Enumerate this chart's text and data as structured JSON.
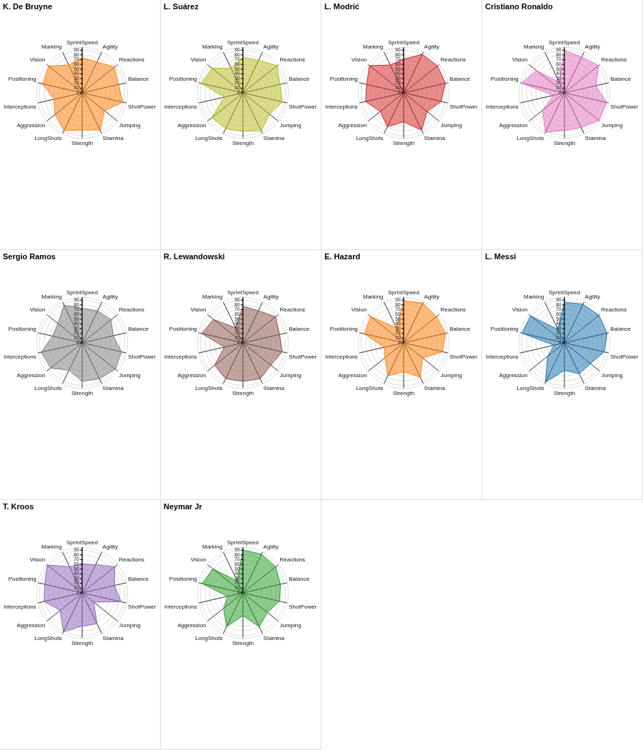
{
  "chart_data": [
    {
      "type": "radar",
      "title": "K. De Bruyne",
      "categories": [
        "SprintSpeed",
        "Agility",
        "Reactions",
        "Balance",
        "ShotPower",
        "Jumping",
        "Stamina",
        "Strength",
        "LongShots",
        "Aggression",
        "Interceptions",
        "Positioning",
        "Vision",
        "Marking"
      ],
      "series": [
        {
          "color": "#ff7f0e",
          "values": [
            74,
            72,
            87,
            78,
            88,
            60,
            87,
            78,
            88,
            73,
            61,
            85,
            90,
            65
          ]
        }
      ],
      "ylim": [
        0,
        96
      ],
      "yticks": [
        0,
        10,
        20,
        30,
        40,
        50,
        60,
        70,
        80,
        90
      ],
      "grid": true,
      "marker": "none"
    },
    {
      "type": "radar",
      "title": "L. Suárez",
      "categories": [
        "SprintSpeed",
        "Agility",
        "Reactions",
        "Balance",
        "ShotPower",
        "Jumping",
        "Stamina",
        "Strength",
        "LongShots",
        "Aggression",
        "Interceptions",
        "Positioning",
        "Vision",
        "Marking"
      ],
      "series": [
        {
          "color": "#bcbd22",
          "values": [
            75,
            76,
            92,
            80,
            85,
            72,
            89,
            81,
            84,
            84,
            40,
            90,
            83,
            57
          ]
        }
      ],
      "ylim": [
        0,
        96
      ],
      "yticks": [
        0,
        10,
        20,
        30,
        40,
        50,
        60,
        70,
        80,
        90
      ],
      "grid": true,
      "marker": "none"
    },
    {
      "type": "radar",
      "title": "L. Modrić",
      "categories": [
        "SprintSpeed",
        "Agility",
        "Reactions",
        "Balance",
        "ShotPower",
        "Jumping",
        "Stamina",
        "Strength",
        "LongShots",
        "Aggression",
        "Interceptions",
        "Positioning",
        "Vision",
        "Marking"
      ],
      "series": [
        {
          "color": "#d62728",
          "values": [
            71,
            90,
            91,
            90,
            81,
            63,
            87,
            61,
            79,
            63,
            82,
            80,
            92,
            65
          ]
        }
      ],
      "ylim": [
        0,
        96
      ],
      "yticks": [
        0,
        10,
        20,
        30,
        40,
        50,
        60,
        70,
        80,
        90
      ],
      "grid": true,
      "marker": "none"
    },
    {
      "type": "radar",
      "title": "Cristiano Ronaldo",
      "categories": [
        "SprintSpeed",
        "Agility",
        "Reactions",
        "Balance",
        "ShotPower",
        "Jumping",
        "Stamina",
        "Strength",
        "LongShots",
        "Aggression",
        "Interceptions",
        "Positioning",
        "Vision",
        "Marking"
      ],
      "series": [
        {
          "color": "#e377c2",
          "values": [
            89,
            84,
            92,
            68,
            91,
            93,
            81,
            79,
            92,
            59,
            23,
            93,
            75,
            25
          ]
        }
      ],
      "ylim": [
        0,
        96
      ],
      "yticks": [
        0,
        10,
        20,
        30,
        40,
        50,
        60,
        70,
        80,
        90
      ],
      "grid": true,
      "marker": "none"
    },
    {
      "type": "radar",
      "title": "Sergio Ramos",
      "categories": [
        "SprintSpeed",
        "Agility",
        "Reactions",
        "Balance",
        "ShotPower",
        "Jumping",
        "Stamina",
        "Strength",
        "LongShots",
        "Aggression",
        "Interceptions",
        "Positioning",
        "Vision",
        "Marking"
      ],
      "series": [
        {
          "color": "#7f7f7f",
          "values": [
            73,
            75,
            78,
            67,
            85,
            89,
            84,
            81,
            64,
            85,
            88,
            64,
            65,
            88
          ]
        }
      ],
      "ylim": [
        0,
        96
      ],
      "yticks": [
        0,
        10,
        20,
        30,
        40,
        50,
        60,
        70,
        80,
        90
      ],
      "grid": true,
      "marker": "none"
    },
    {
      "type": "radar",
      "title": "R. Lewandowski",
      "categories": [
        "SprintSpeed",
        "Agility",
        "Reactions",
        "Balance",
        "ShotPower",
        "Jumping",
        "Stamina",
        "Strength",
        "LongShots",
        "Aggression",
        "Interceptions",
        "Positioning",
        "Vision",
        "Marking"
      ],
      "series": [
        {
          "color": "#8c564b",
          "values": [
            77,
            75,
            88,
            79,
            85,
            75,
            84,
            81,
            84,
            76,
            40,
            89,
            79,
            35
          ]
        }
      ],
      "ylim": [
        0,
        96
      ],
      "yticks": [
        0,
        10,
        20,
        30,
        40,
        50,
        60,
        70,
        80,
        90
      ],
      "grid": true,
      "marker": "none"
    },
    {
      "type": "radar",
      "title": "E. Hazard",
      "categories": [
        "SprintSpeed",
        "Agility",
        "Reactions",
        "Balance",
        "ShotPower",
        "Jumping",
        "Stamina",
        "Strength",
        "LongShots",
        "Aggression",
        "Interceptions",
        "Positioning",
        "Vision",
        "Marking"
      ],
      "series": [
        {
          "color": "#ff7f0e",
          "values": [
            88,
            93,
            88,
            90,
            84,
            51,
            80,
            61,
            77,
            50,
            42,
            85,
            89,
            35
          ]
        }
      ],
      "ylim": [
        0,
        96
      ],
      "yticks": [
        0,
        10,
        20,
        30,
        40,
        50,
        60,
        70,
        80,
        90
      ],
      "grid": true,
      "marker": "none"
    },
    {
      "type": "radar",
      "title": "L. Messi",
      "categories": [
        "SprintSpeed",
        "Agility",
        "Reactions",
        "Balance",
        "ShotPower",
        "Jumping",
        "Stamina",
        "Strength",
        "LongShots",
        "Aggression",
        "Interceptions",
        "Positioning",
        "Vision",
        "Marking"
      ],
      "series": [
        {
          "color": "#1f77b4",
          "values": [
            86,
            90,
            93,
            92,
            86,
            70,
            72,
            58,
            92,
            45,
            22,
            92,
            91,
            31
          ]
        }
      ],
      "ylim": [
        0,
        96
      ],
      "yticks": [
        0,
        10,
        20,
        30,
        40,
        50,
        60,
        70,
        80,
        90
      ],
      "grid": true,
      "marker": "none"
    },
    {
      "type": "radar",
      "title": "T. Kroos",
      "categories": [
        "SprintSpeed",
        "Agility",
        "Reactions",
        "Balance",
        "ShotPower",
        "Jumping",
        "Stamina",
        "Strength",
        "LongShots",
        "Aggression",
        "Interceptions",
        "Positioning",
        "Vision",
        "Marking"
      ],
      "series": [
        {
          "color": "#9467bd",
          "values": [
            61,
            66,
            88,
            70,
            84,
            31,
            72,
            70,
            91,
            59,
            82,
            81,
            94,
            61
          ]
        }
      ],
      "ylim": [
        0,
        96
      ],
      "yticks": [
        0,
        10,
        20,
        30,
        40,
        50,
        60,
        70,
        80,
        90
      ],
      "grid": true,
      "marker": "none"
    },
    {
      "type": "radar",
      "title": "Neymar Jr",
      "categories": [
        "SprintSpeed",
        "Agility",
        "Reactions",
        "Balance",
        "ShotPower",
        "Jumping",
        "Stamina",
        "Strength",
        "LongShots",
        "Aggression",
        "Interceptions",
        "Positioning",
        "Vision",
        "Marking"
      ],
      "series": [
        {
          "color": "#2ca02c",
          "values": [
            90,
            90,
            88,
            81,
            79,
            66,
            79,
            48,
            79,
            52,
            33,
            88,
            81,
            28
          ]
        }
      ],
      "ylim": [
        0,
        96
      ],
      "yticks": [
        0,
        10,
        20,
        30,
        40,
        50,
        60,
        70,
        80,
        90
      ],
      "grid": true,
      "marker": "none"
    }
  ]
}
